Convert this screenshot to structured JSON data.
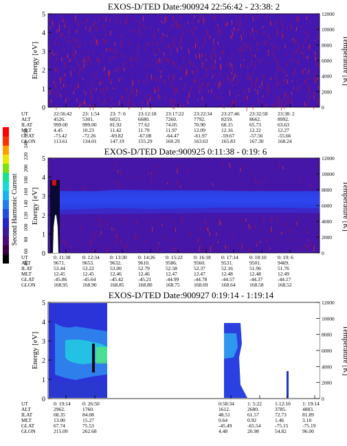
{
  "colorbar": {
    "label": "Second Harmonic Current",
    "ticks": [
      "40",
      "60",
      "80",
      "100",
      "120",
      "140",
      "160",
      "180",
      "200",
      "220",
      "240",
      "250"
    ],
    "colors": [
      "#000000",
      "#3a0040",
      "#4b0a78",
      "#3a1a9a",
      "#2626c8",
      "#1f4fe0",
      "#1f7ff0",
      "#18b4f0",
      "#15d8d8",
      "#18e090",
      "#7ae010",
      "#e8e800",
      "#ffa000",
      "#ff3000",
      "#ff0000"
    ]
  },
  "yaxes": {
    "energy_label": "Energy [eV]",
    "energy_ticks": [
      "0",
      "1",
      "2",
      "3",
      "4",
      "5"
    ],
    "temp_label": "Temperature [K]",
    "temp_ticks": [
      "0",
      "2000",
      "4000",
      "6000",
      "8000",
      "10000",
      "12000"
    ]
  },
  "panels": [
    {
      "title": "EXOS-D/TED  Date:900924  22:56:42 - 23:38: 2",
      "row_labels": [
        "UT",
        "ALT",
        "ILAT",
        "MLT",
        "GLAT",
        "GLON"
      ],
      "columns": [
        {
          "UT": "22:56:42",
          "ALT": "4526.",
          "ILAT": "999.00",
          "MLT": "4.45",
          "GLAT": "-73.42",
          "GLON": "113.61"
        },
        {
          "UT": "23: 1:54",
          "ALT": "5301.",
          "ILAT": "999.00",
          "MLT": "10.23",
          "GLAT": "-72.26",
          "GLON": "134.01"
        },
        {
          "UT": "23: 7: 6",
          "ALT": "6021.",
          "ILAT": "81.92",
          "MLT": "11.42",
          "GLAT": "-69.82",
          "GLON": "147.19"
        },
        {
          "UT": "23:12:18",
          "ALT": "6680.",
          "ILAT": "77.62",
          "MLT": "11.79",
          "GLAT": "-67.08",
          "GLON": "155.29"
        },
        {
          "UT": "23:17:22",
          "ALT": "7260.",
          "ILAT": "74.05",
          "MLT": "11.97",
          "GLAT": "-64.47",
          "GLON": "160.29"
        },
        {
          "UT": "23:22:34",
          "ALT": "7792.",
          "ILAT": "70.90",
          "MLT": "12.09",
          "GLAT": "-61.97",
          "GLON": "163.63"
        },
        {
          "UT": "23:27:46",
          "ALT": "8259.",
          "ILAT": "68.15",
          "MLT": "12.16",
          "GLAT": "-59.67",
          "GLON": "165.83"
        },
        {
          "UT": "23:32:58",
          "ALT": "8662.",
          "ILAT": "65.73",
          "MLT": "12.22",
          "GLAT": "-57.56",
          "GLON": "167.30"
        },
        {
          "UT": "23:38: 2",
          "ALT": "8992.",
          "ILAT": "63.63",
          "MLT": "12.27",
          "GLAT": "-55.66",
          "GLON": "168.24"
        }
      ]
    },
    {
      "title": "EXOS-D/TED   Date:900925   0:11:38 - 0:19: 6",
      "row_labels": [
        "UT",
        "ALT",
        "ILAT",
        "MLT",
        "GLAT",
        "GLON"
      ],
      "columns": [
        {
          "UT": "0: 11:38",
          "ALT": "9671.",
          "ILAT": "53.44",
          "MLT": "12.45",
          "GLAT": "-45.86",
          "GLON": "168.95"
        },
        {
          "UT": "0: 12:34",
          "ALT": "9653.",
          "ILAT": "53.22",
          "MLT": "12.45",
          "GLAT": "-45.64",
          "GLON": "168.90"
        },
        {
          "UT": "0: 13:30",
          "ALT": "9632.",
          "ILAT": "53.00",
          "MLT": "12.46",
          "GLAT": "-45.42",
          "GLON": "168.85"
        },
        {
          "UT": "0: 14:26",
          "ALT": "9610.",
          "ILAT": "52.79",
          "MLT": "12.46",
          "GLAT": "-45.21",
          "GLON": "168.80"
        },
        {
          "UT": "0: 15:22",
          "ALT": "9586.",
          "ILAT": "52.58",
          "MLT": "12.47",
          "GLAT": "-44.99",
          "GLON": "168.75"
        },
        {
          "UT": "0: 16:18",
          "ALT": "9560.",
          "ILAT": "52.37",
          "MLT": "12.47",
          "GLAT": "-44.78",
          "GLON": "168.69"
        },
        {
          "UT": "0: 17:14",
          "ALT": "9531.",
          "ILAT": "52.16",
          "MLT": "12.48",
          "GLAT": "-44.57",
          "GLON": "168.64"
        },
        {
          "UT": "0: 18:10",
          "ALT": "9501.",
          "ILAT": "51.96",
          "MLT": "12.48",
          "GLAT": "-44.37",
          "GLON": "168.58"
        },
        {
          "UT": "0: 19: 6",
          "ALT": "9469.",
          "ILAT": "51.76",
          "MLT": "12.49",
          "GLAT": "-44.17",
          "GLON": "168.52"
        }
      ]
    },
    {
      "title": "EXOS-D/TED   Date:900927   0:19:14 - 1:19:14",
      "row_labels": [
        "UT",
        "ALT",
        "ILAT",
        "MLT",
        "GLAT",
        "GLON"
      ],
      "columns": [
        {
          "UT": "0: 19:14",
          "ALT": "2962.",
          "ILAT": "68.35",
          "MLT": "13.00",
          "GLAT": "67.74",
          "GLON": "215.09"
        },
        {
          "UT": "0: 26:50",
          "ALT": "1760.",
          "ILAT": "84.08",
          "MLT": "15.27",
          "GLAT": "75.53",
          "GLON": "262.68"
        },
        {
          "UT": "0:58:34",
          "ALT": "1612.",
          "ILAT": "48.51",
          "MLT": "0.64",
          "GLAT": "-45.49",
          "GLON": "4.48"
        },
        {
          "UT": "1: 5:22",
          "ALT": "2680.",
          "ILAT": "61.57",
          "MLT": "0.92",
          "GLAT": "-65.54",
          "GLON": "20.98"
        },
        {
          "UT": "1:12:10",
          "ALT": "3785.",
          "ILAT": "72.73",
          "MLT": "1.46",
          "GLAT": "-75.15",
          "GLON": "54.82"
        },
        {
          "UT": "1: 19:14",
          "ALT": "4883.",
          "ILAT": "81.89",
          "MLT": "3.18",
          "GLAT": "-75.19",
          "GLON": "96.00"
        }
      ]
    }
  ],
  "chart_data": [
    {
      "type": "heatmap",
      "title": "EXOS-D/TED  Date:900924  22:56:42 - 23:38: 2",
      "ylabel": "Energy [eV]",
      "ylim": [
        0,
        5
      ],
      "y2label": "Temperature [K]",
      "y2lim": [
        0,
        12000
      ],
      "x_start": "22:56:42",
      "x_end": "23:38: 2",
      "description_values": {
        "background_level": 70,
        "noise_level": 250
      }
    },
    {
      "type": "heatmap",
      "title": "EXOS-D/TED   Date:900925   0:11:38 - 0:19: 6",
      "ylabel": "Energy [eV]",
      "ylim": [
        0,
        5
      ],
      "y2label": "Temperature [K]",
      "y2lim": [
        0,
        12000
      ],
      "x_start": "0: 11:38",
      "x_end": "0: 19: 6",
      "band_energy_range_eV": [
        1.9,
        3.8
      ],
      "band_level": 120
    },
    {
      "type": "heatmap",
      "title": "EXOS-D/TED   Date:900927   0:19:14 - 1:19:14",
      "ylabel": "Energy [eV]",
      "ylim": [
        0,
        5
      ],
      "y2label": "Temperature [K]",
      "y2lim": [
        0,
        12000
      ],
      "x_start": "0: 19:14",
      "x_end": "1: 19:14",
      "data_segments": [
        [
          "0: 19:14",
          "0: 26:50"
        ],
        [
          "0:58:34",
          "1: 5:22"
        ]
      ]
    }
  ]
}
